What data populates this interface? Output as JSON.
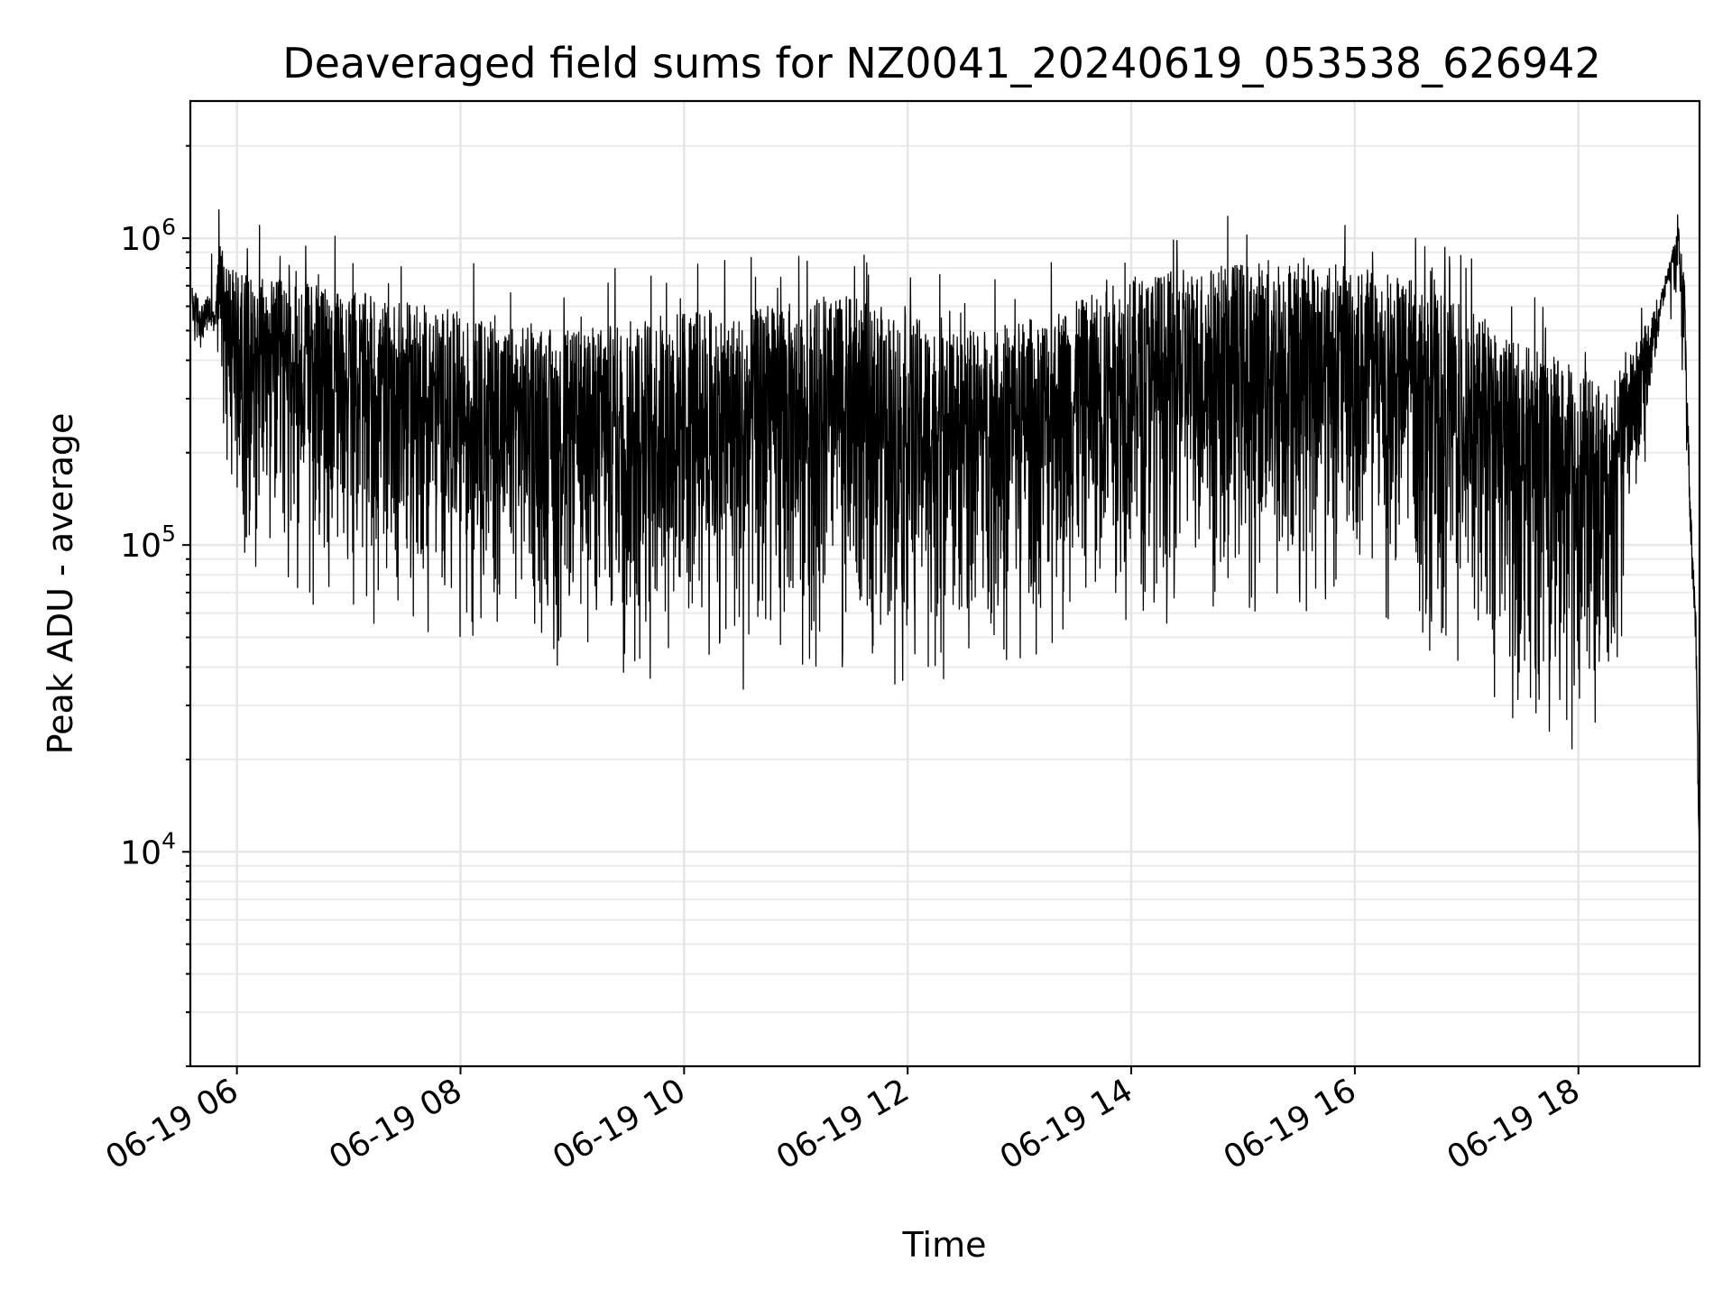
{
  "chart_data": {
    "type": "line",
    "title": "Deaveraged field sums for NZ0041_20240619_053538_626942",
    "xlabel": "Time",
    "ylabel": "Peak ADU - average",
    "xlim": [
      "2024-06-19 05:35",
      "2024-06-19 19:05"
    ],
    "ylim": [
      2000,
      2800000
    ],
    "yscale": "log",
    "grid": true,
    "x_tick_labels": [
      "06-19 06",
      "06-19 08",
      "06-19 10",
      "06-19 12",
      "06-19 14",
      "06-19 16",
      "06-19 18"
    ],
    "y_tick_labels": [
      {
        "base": "10",
        "exp": "4",
        "value": 10000
      },
      {
        "base": "10",
        "exp": "5",
        "value": 100000
      },
      {
        "base": "10",
        "exp": "6",
        "value": 1000000
      }
    ],
    "series": [
      {
        "color": "#000000",
        "x_hours": [
          5.6,
          5.65,
          5.7,
          5.75,
          5.8,
          5.85,
          5.9,
          5.95,
          6.0,
          6.5,
          7.0,
          7.5,
          8.0,
          8.5,
          9.0,
          9.5,
          10.0,
          10.5,
          11.0,
          11.5,
          12.0,
          12.5,
          13.0,
          13.5,
          14.0,
          14.5,
          15.0,
          15.5,
          16.0,
          16.5,
          17.0,
          17.5,
          18.0,
          18.3,
          18.5,
          18.7,
          18.8,
          18.9,
          18.95,
          19.0,
          19.05,
          19.1
        ],
        "y_upper": [
          700000,
          650000,
          600000,
          680000,
          560000,
          1100000,
          900000,
          800000,
          780000,
          720000,
          680000,
          620000,
          560000,
          520000,
          500000,
          540000,
          600000,
          580000,
          620000,
          650000,
          560000,
          500000,
          540000,
          620000,
          750000,
          800000,
          850000,
          870000,
          820000,
          720000,
          600000,
          450000,
          380000,
          300000,
          450000,
          600000,
          800000,
          1100000,
          700000,
          150000,
          60000,
          4000
        ],
        "y_lower": [
          430000,
          420000,
          450000,
          450000,
          430000,
          400000,
          200000,
          180000,
          120000,
          80000,
          75000,
          70000,
          65000,
          60000,
          50000,
          45000,
          48000,
          40000,
          45000,
          50000,
          45000,
          50000,
          55000,
          60000,
          70000,
          75000,
          75000,
          80000,
          75000,
          65000,
          50000,
          32000,
          26000,
          35000,
          150000,
          400000,
          700000,
          600000,
          350000,
          100000,
          40000,
          3500
        ]
      }
    ]
  }
}
